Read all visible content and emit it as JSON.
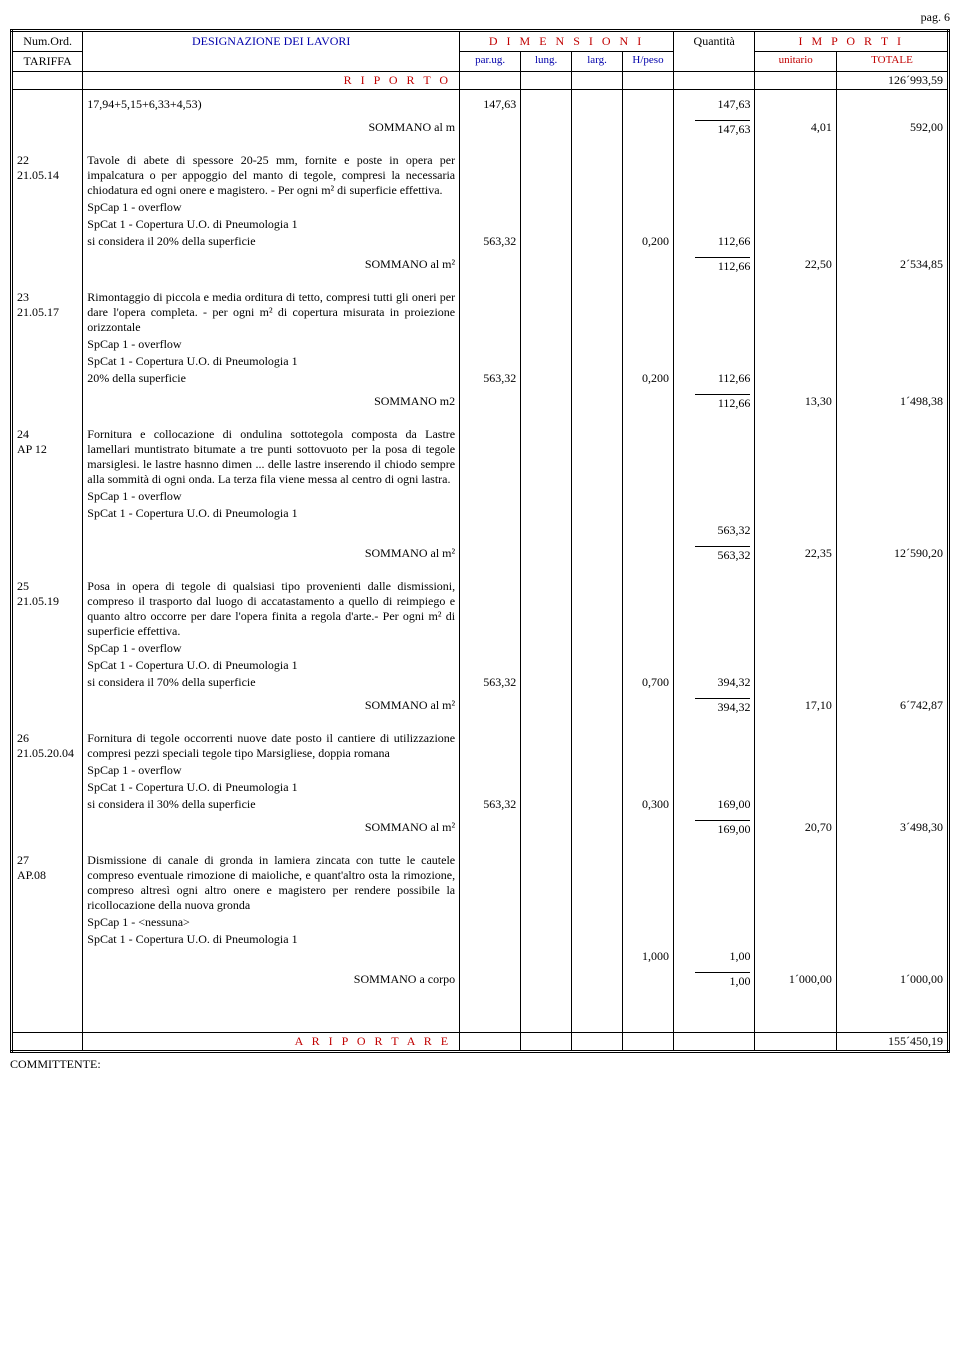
{
  "page_label": "pag. 6",
  "header": {
    "num_ord": "Num.Ord.",
    "tariffa": "TARIFFA",
    "designazione": "DESIGNAZIONE DEI LAVORI",
    "dimensioni": "D I M E N S I O N I",
    "quantita": "Quantità",
    "importi": "I M P O R T I",
    "parug": "par.ug.",
    "lung": "lung.",
    "larg": "larg.",
    "hpeso": "H/peso",
    "unitario": "unitario",
    "totale": "TOTALE"
  },
  "riporto": {
    "label": "R I P O R T O",
    "totale": "126´993,59"
  },
  "prev": {
    "formula": "17,94+5,15+6,33+4,53)",
    "parug": "147,63",
    "qta": "147,63",
    "som_label": "SOMMANO al m",
    "som_qta": "147,63",
    "som_unit": "4,01",
    "som_tot": "592,00"
  },
  "items": [
    {
      "num": "22",
      "code": "21.05.14",
      "desc": "Tavole di abete di spessore 20-25 mm, fornite e poste in opera per impalcatura o per appoggio del manto di tegole, compresi la necessaria chiodatura ed ogni onere e magistero. - Per ogni m² di superficie effettiva.",
      "sp1": "SpCap 1 - overflow",
      "sp2": "SpCat 1 - Copertura U.O. di Pneumologia 1",
      "measure_line": "si considera il 20% della superficie",
      "parug": "563,32",
      "hpeso": "0,200",
      "qta": "112,66",
      "som_label": "SOMMANO al m²",
      "som_qta": "112,66",
      "som_unit": "22,50",
      "som_tot": "2´534,85"
    },
    {
      "num": "23",
      "code": "21.05.17",
      "desc": "Rimontaggio di piccola e media orditura di tetto, compresi tutti gli oneri per dare l'opera completa. - per ogni m² di copertura misurata in proiezione orizzontale",
      "sp1": "SpCap 1 - overflow",
      "sp2": "SpCat 1 - Copertura U.O. di Pneumologia 1",
      "measure_line": "20% della superficie",
      "parug": "563,32",
      "hpeso": "0,200",
      "qta": "112,66",
      "som_label": "SOMMANO m2",
      "som_qta": "112,66",
      "som_unit": "13,30",
      "som_tot": "1´498,38"
    },
    {
      "num": "24",
      "code": "AP 12",
      "desc": "Fornitura e collocazione di ondulina sottotegola composta da Lastre lamellari muntistrato bitumate a tre punti sottovuoto per la posa di  tegole marsiglesi. le lastre hasnno dimen ... delle lastre inserendo il chiodo sempre alla sommità di ogni onda. La terza fila viene messa al centro di ogni lastra.",
      "sp1": "SpCap 1 - overflow",
      "sp2": "SpCat 1 - Copertura U.O. di Pneumologia 1",
      "measure_line": "",
      "parug": "",
      "hpeso": "",
      "qta": "563,32",
      "som_label": "SOMMANO al m²",
      "som_qta": "563,32",
      "som_unit": "22,35",
      "som_tot": "12´590,20"
    },
    {
      "num": "25",
      "code": "21.05.19",
      "desc": "Posa in opera di tegole di qualsiasi tipo provenienti dalle dismissioni, compreso il trasporto dal luogo di accatastamento a quello di reimpiego e quanto altro occorre per dare l'opera finita a regola d'arte.- Per ogni m² di superficie effettiva.",
      "sp1": "SpCap 1 - overflow",
      "sp2": "SpCat 1 - Copertura U.O. di Pneumologia 1",
      "measure_line": "si considera il 70% della superficie",
      "parug": "563,32",
      "hpeso": "0,700",
      "qta": "394,32",
      "som_label": "SOMMANO al m²",
      "som_qta": "394,32",
      "som_unit": "17,10",
      "som_tot": "6´742,87"
    },
    {
      "num": "26",
      "code": "21.05.20.04",
      "desc": "Fornitura di tegole occorrenti nuove date posto il cantiere di utilizzazione compresi pezzi speciali tegole tipo Marsigliese, doppia romana",
      "sp1": "SpCap 1 - overflow",
      "sp2": "SpCat 1 - Copertura U.O. di Pneumologia 1",
      "measure_line": "si considera il 30% della superficie",
      "parug": "563,32",
      "hpeso": "0,300",
      "qta": "169,00",
      "som_label": "SOMMANO al m²",
      "som_qta": "169,00",
      "som_unit": "20,70",
      "som_tot": "3´498,30"
    },
    {
      "num": "27",
      "code": "AP.08",
      "desc": "Dismissione di canale di gronda in lamiera zincata con tutte le cautele compreso eventuale rimozione di maioliche, e quant'altro osta la rimozione, compreso altresì ogni altro onere e magistero per rendere possibile la ricollocazione della nuova gronda",
      "sp1": "SpCap 1 - <nessuna>",
      "sp2": "SpCat 1 - Copertura U.O. di Pneumologia 1",
      "measure_line": "",
      "parug": "",
      "hpeso": "1,000",
      "qta": "1,00",
      "som_label": "SOMMANO a corpo",
      "som_qta": "1,00",
      "som_unit": "1´000,00",
      "som_tot": "1´000,00"
    }
  ],
  "riportare": {
    "label": "A   R I P O R T A R E",
    "totale": "155´450,19"
  },
  "committente": "COMMITTENTE:",
  "colors": {
    "red": "#c00000",
    "blue": "#0000cc",
    "black": "#000000"
  }
}
